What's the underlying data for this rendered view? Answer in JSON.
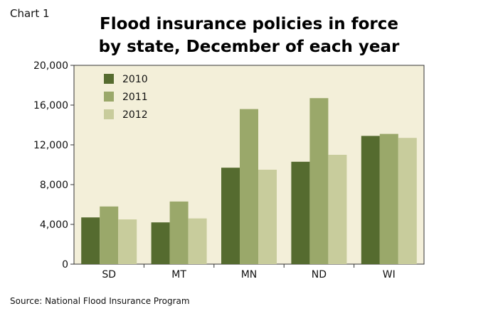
{
  "chart_label": "Chart 1",
  "source": "Source: National Flood Insurance Program",
  "colors": {
    "plot_background": "#f3efd9",
    "series_2010": "#556b2f",
    "series_2011": "#9aa86a",
    "series_2012": "#c8cc9c",
    "axis": "#333333"
  },
  "chart_data": {
    "type": "bar",
    "title_line1": "Flood insurance policies in force",
    "title_line2": "by state, December of each year",
    "categories": [
      "SD",
      "MT",
      "MN",
      "ND",
      "WI"
    ],
    "series": [
      {
        "name": "2010",
        "values": [
          4700,
          4200,
          9700,
          10300,
          12900
        ]
      },
      {
        "name": "2011",
        "values": [
          5800,
          6300,
          15600,
          16700,
          13100
        ]
      },
      {
        "name": "2012",
        "values": [
          4500,
          4600,
          9500,
          11000,
          12700
        ]
      }
    ],
    "ylim": [
      0,
      20000
    ],
    "yticks": [
      0,
      4000,
      8000,
      12000,
      16000,
      20000
    ],
    "ytick_labels": [
      "0",
      "4,000",
      "8,000",
      "12,000",
      "16,000",
      "20,000"
    ],
    "xlabel": "",
    "ylabel": "",
    "legend_position": "top-left",
    "grid": false
  }
}
